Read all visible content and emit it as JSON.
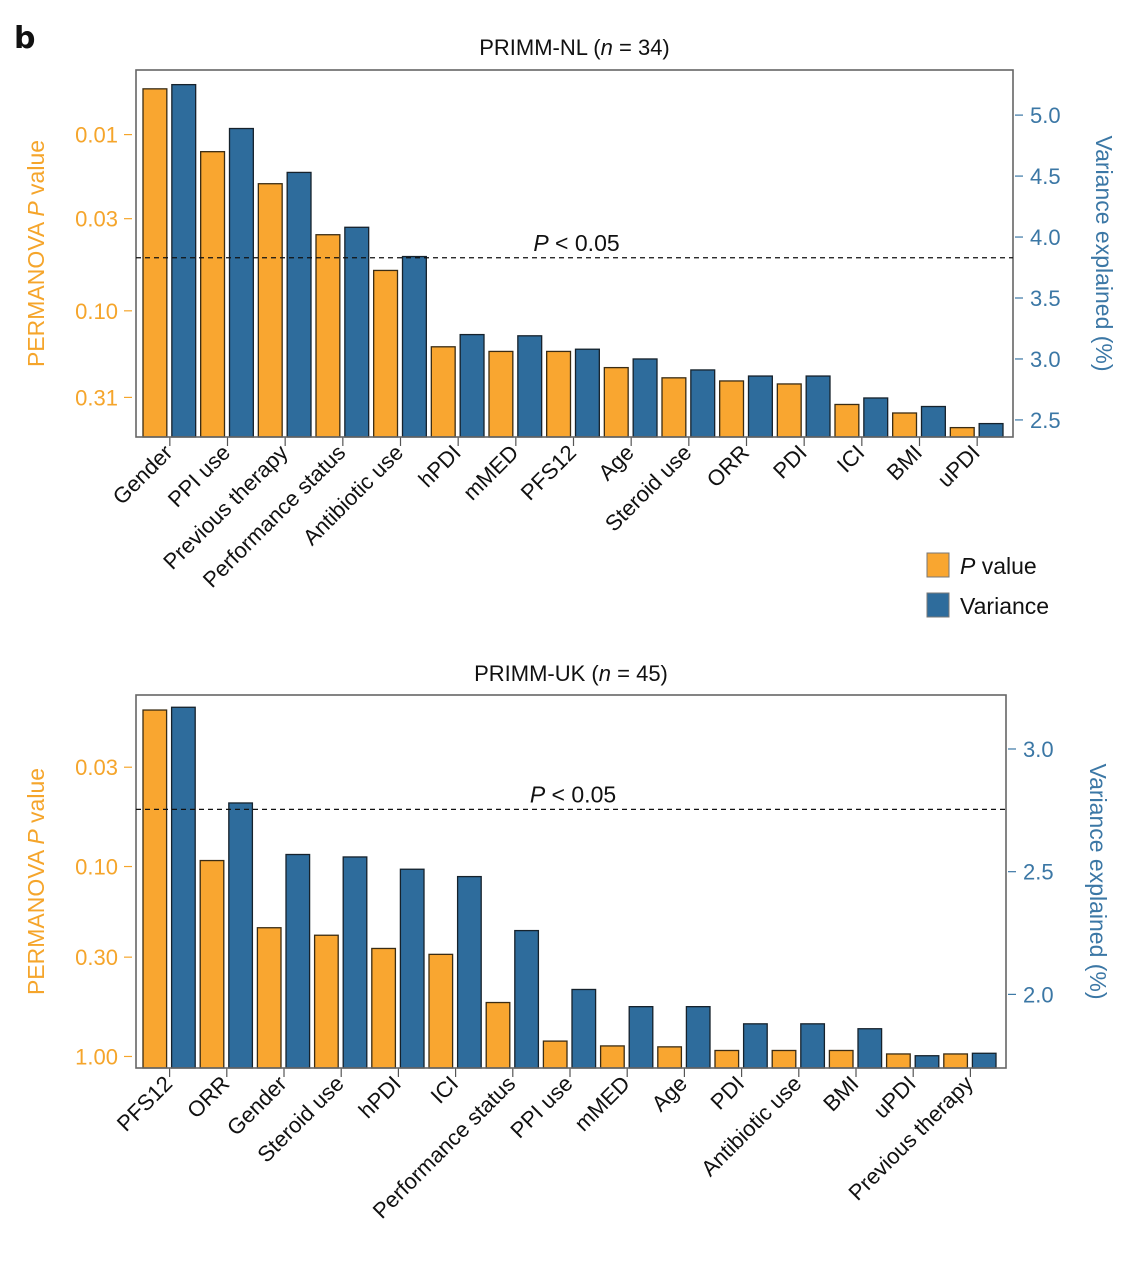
{
  "panel_letter": "b",
  "chart_data": [
    {
      "type": "bar",
      "title": "PRIMM-NL",
      "title_n": "34",
      "categories": [
        "Gender",
        "PPI use",
        "Previous therapy",
        "Performance status",
        "Antibiotic use",
        "hPDI",
        "mMED",
        "PFS12",
        "Age",
        "Steroid use",
        "ORR",
        "PDI",
        "ICI",
        "BMI",
        "uPDI"
      ],
      "series": [
        {
          "name": "P value",
          "axis": "left",
          "color": "#f9a630",
          "values": [
            0.0055,
            0.0125,
            0.019,
            0.037,
            0.059,
            0.16,
            0.17,
            0.17,
            0.21,
            0.24,
            0.25,
            0.26,
            0.34,
            0.38,
            0.46
          ]
        },
        {
          "name": "Variance",
          "axis": "right",
          "color": "#2e6c9c",
          "values": [
            5.25,
            4.89,
            4.53,
            4.08,
            3.84,
            3.2,
            3.19,
            3.08,
            3.0,
            2.91,
            2.86,
            2.86,
            2.68,
            2.61,
            2.47
          ]
        }
      ],
      "ylabel_left": "PERMANOVA P value",
      "ylabel_right": "Variance explained (%)",
      "left_scale": "log-reversed",
      "left_ticks": [
        "0.01",
        "0.03",
        "0.10",
        "0.31"
      ],
      "left_tick_values": [
        0.01,
        0.03,
        0.1,
        0.31
      ],
      "right_ticks": [
        "5.0",
        "4.5",
        "4.0",
        "3.5",
        "3.0",
        "2.5"
      ],
      "right_tick_values": [
        5.0,
        4.5,
        4.0,
        3.5,
        3.0,
        2.5
      ],
      "ylim_left": [
        0.0043,
        0.52
      ],
      "ylim_right": [
        2.36,
        5.37
      ],
      "threshold": {
        "label": "P < 0.05",
        "value": 0.05
      },
      "grid": false
    },
    {
      "type": "bar",
      "title": "PRIMM-UK",
      "title_n": "45",
      "categories": [
        "PFS12",
        "ORR",
        "Gender",
        "Steroid use",
        "hPDI",
        "ICI",
        "Performance status",
        "PPI use",
        "mMED",
        "Age",
        "PDI",
        "Antibiotic use",
        "BMI",
        "uPDI",
        "Previous therapy"
      ],
      "series": [
        {
          "name": "P value",
          "axis": "left",
          "color": "#f9a630",
          "values": [
            0.015,
            0.093,
            0.21,
            0.23,
            0.27,
            0.29,
            0.52,
            0.83,
            0.88,
            0.89,
            0.93,
            0.93,
            0.93,
            0.97,
            0.97
          ]
        },
        {
          "name": "Variance",
          "axis": "right",
          "color": "#2e6c9c",
          "values": [
            3.17,
            2.78,
            2.57,
            2.56,
            2.51,
            2.48,
            2.26,
            2.02,
            1.95,
            1.95,
            1.88,
            1.88,
            1.86,
            1.75,
            1.76
          ]
        }
      ],
      "ylabel_left": "PERMANOVA P value",
      "ylabel_right": "Variance explained (%)",
      "left_scale": "log-reversed",
      "left_ticks": [
        "0.03",
        "0.10",
        "0.30",
        "1.00"
      ],
      "left_tick_values": [
        0.03,
        0.1,
        0.3,
        1.0
      ],
      "right_ticks": [
        "3.0",
        "2.5",
        "2.0"
      ],
      "right_tick_values": [
        3.0,
        2.5,
        2.0
      ],
      "ylim_left": [
        0.0125,
        1.15
      ],
      "ylim_right": [
        1.7,
        3.22
      ],
      "threshold": {
        "label": "P < 0.05",
        "value": 0.05
      },
      "grid": false
    }
  ],
  "legend": {
    "placement": "right-between-panels",
    "items": [
      {
        "label_italic": "P",
        "label": " value",
        "color": "#f9a630"
      },
      {
        "label_italic": "",
        "label": "Variance",
        "color": "#2e6c9c"
      }
    ]
  }
}
